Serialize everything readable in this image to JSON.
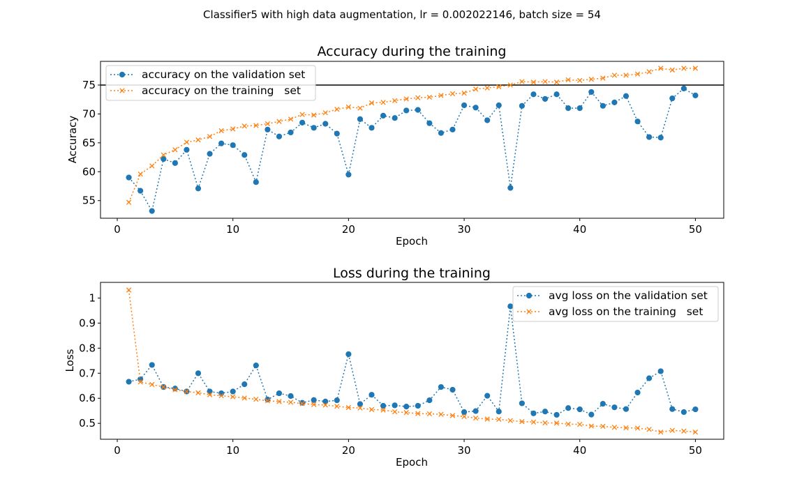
{
  "figure": {
    "suptitle": "Classifier5 with high data augmentation, lr = 0.002022146, batch size = 54"
  },
  "colors": {
    "validation": "#1f77b4",
    "training": "#ff7f0e",
    "hline": "#000000"
  },
  "chart_data": [
    {
      "type": "line",
      "title": "Accuracy during the training",
      "xlabel": "Epoch",
      "ylabel": "Accuracy",
      "xlim": [
        -1.45,
        52.45
      ],
      "ylim": [
        51.95,
        79.1
      ],
      "xticks": [
        0,
        10,
        20,
        30,
        40,
        50
      ],
      "yticks": [
        55,
        60,
        65,
        70,
        75
      ],
      "grid": false,
      "legend_loc": "upper left",
      "hline": 75,
      "x": [
        1,
        2,
        3,
        4,
        5,
        6,
        7,
        8,
        9,
        10,
        11,
        12,
        13,
        14,
        15,
        16,
        17,
        18,
        19,
        20,
        21,
        22,
        23,
        24,
        25,
        26,
        27,
        28,
        29,
        30,
        31,
        32,
        33,
        34,
        35,
        36,
        37,
        38,
        39,
        40,
        41,
        42,
        43,
        44,
        45,
        46,
        47,
        48,
        49,
        50
      ],
      "series": [
        {
          "name": "accuracy on the validation set",
          "marker": "circle",
          "color_key": "validation",
          "values": [
            59.0,
            56.7,
            53.2,
            62.2,
            61.5,
            63.8,
            57.1,
            63.1,
            64.9,
            64.6,
            62.9,
            58.2,
            67.3,
            66.1,
            66.8,
            68.5,
            67.6,
            68.3,
            66.6,
            59.5,
            69.1,
            67.6,
            69.7,
            69.3,
            70.6,
            70.7,
            68.4,
            66.7,
            67.3,
            71.5,
            71.1,
            68.9,
            71.5,
            57.2,
            71.4,
            73.4,
            72.6,
            73.4,
            71.0,
            71.0,
            73.8,
            71.4,
            72.0,
            73.1,
            68.7,
            66.0,
            65.9,
            72.7,
            74.4,
            73.2
          ]
        },
        {
          "name": "accuracy on the training   set",
          "marker": "x",
          "color_key": "training",
          "values": [
            54.7,
            59.6,
            61.0,
            62.9,
            63.8,
            65.1,
            65.5,
            66.1,
            67.1,
            67.4,
            67.9,
            68.0,
            68.3,
            68.7,
            69.1,
            69.9,
            69.8,
            70.2,
            70.8,
            71.2,
            71.0,
            71.9,
            72.0,
            72.3,
            72.6,
            72.8,
            72.9,
            73.2,
            73.5,
            73.6,
            74.3,
            74.5,
            74.7,
            75.0,
            75.6,
            75.5,
            75.6,
            75.5,
            75.9,
            75.8,
            76.0,
            76.2,
            76.7,
            76.7,
            76.9,
            77.3,
            77.9,
            77.6,
            77.9,
            77.9
          ]
        }
      ]
    },
    {
      "type": "line",
      "title": "Loss during the training",
      "xlabel": "Epoch",
      "ylabel": "Loss",
      "xlim": [
        -1.45,
        52.45
      ],
      "ylim": [
        0.4365,
        1.0625
      ],
      "xticks": [
        0,
        10,
        20,
        30,
        40,
        50
      ],
      "yticks": [
        0.5,
        0.6,
        0.7,
        0.8,
        0.9,
        1.0
      ],
      "grid": false,
      "legend_loc": "upper right",
      "x": [
        1,
        2,
        3,
        4,
        5,
        6,
        7,
        8,
        9,
        10,
        11,
        12,
        13,
        14,
        15,
        16,
        17,
        18,
        19,
        20,
        21,
        22,
        23,
        24,
        25,
        26,
        27,
        28,
        29,
        30,
        31,
        32,
        33,
        34,
        35,
        36,
        37,
        38,
        39,
        40,
        41,
        42,
        43,
        44,
        45,
        46,
        47,
        48,
        49,
        50
      ],
      "series": [
        {
          "name": "avg loss on the validation set",
          "marker": "circle",
          "color_key": "validation",
          "values": [
            0.666,
            0.676,
            0.733,
            0.645,
            0.639,
            0.627,
            0.7,
            0.627,
            0.62,
            0.627,
            0.656,
            0.731,
            0.595,
            0.62,
            0.609,
            0.582,
            0.593,
            0.587,
            0.592,
            0.776,
            0.577,
            0.614,
            0.57,
            0.572,
            0.567,
            0.57,
            0.592,
            0.645,
            0.634,
            0.545,
            0.549,
            0.61,
            0.547,
            0.967,
            0.58,
            0.54,
            0.547,
            0.534,
            0.561,
            0.556,
            0.535,
            0.578,
            0.564,
            0.557,
            0.623,
            0.68,
            0.708,
            0.557,
            0.545,
            0.556
          ]
        },
        {
          "name": "avg loss on the training   set",
          "marker": "x",
          "color_key": "training",
          "values": [
            1.032,
            0.665,
            0.655,
            0.645,
            0.634,
            0.627,
            0.622,
            0.614,
            0.61,
            0.606,
            0.601,
            0.596,
            0.59,
            0.587,
            0.584,
            0.579,
            0.575,
            0.573,
            0.568,
            0.563,
            0.561,
            0.555,
            0.553,
            0.546,
            0.543,
            0.539,
            0.538,
            0.536,
            0.531,
            0.527,
            0.521,
            0.517,
            0.516,
            0.511,
            0.507,
            0.505,
            0.502,
            0.501,
            0.497,
            0.496,
            0.489,
            0.488,
            0.484,
            0.482,
            0.481,
            0.476,
            0.465,
            0.472,
            0.469,
            0.465
          ]
        }
      ]
    }
  ]
}
